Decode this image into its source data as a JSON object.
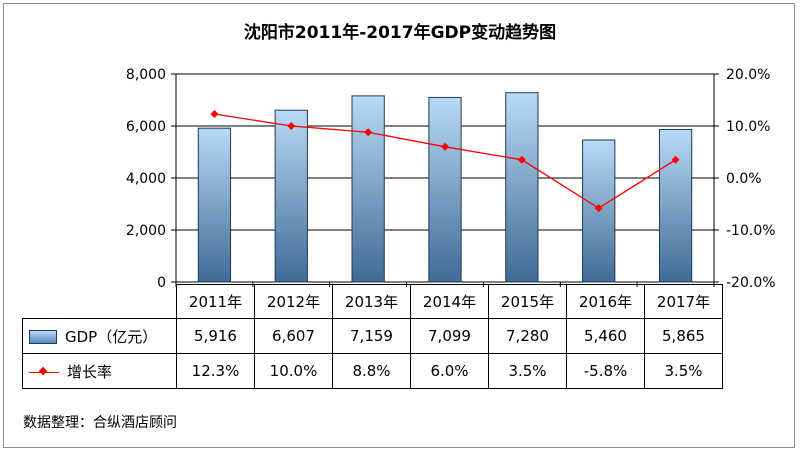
{
  "source_note": "数据整理：合纵酒店顾问",
  "legend": {
    "gdp": "GDP（亿元）",
    "growth": "增长率"
  },
  "chart_data": {
    "type": "bar",
    "title": "沈阳市2011年-2017年GDP变动趋势图",
    "categories": [
      "2011年",
      "2012年",
      "2013年",
      "2014年",
      "2015年",
      "2016年",
      "2017年"
    ],
    "series": [
      {
        "name": "GDP（亿元）",
        "type": "bar",
        "axis": "left",
        "values": [
          5916,
          6607,
          7159,
          7099,
          7280,
          5460,
          5865
        ],
        "labels": [
          "5,916",
          "6,607",
          "7,159",
          "7,099",
          "7,280",
          "5,460",
          "5,865"
        ]
      },
      {
        "name": "增长率",
        "type": "line",
        "axis": "right",
        "values": [
          12.3,
          10.0,
          8.8,
          6.0,
          3.5,
          -5.8,
          3.5
        ],
        "labels": [
          "12.3%",
          "10.0%",
          "8.8%",
          "6.0%",
          "3.5%",
          "-5.8%",
          "3.5%"
        ]
      }
    ],
    "y_left": {
      "range": [
        0,
        8000
      ],
      "ticks": [
        0,
        2000,
        4000,
        6000,
        8000
      ],
      "tick_labels": [
        "0",
        "2,000",
        "4,000",
        "6,000",
        "8,000"
      ]
    },
    "y_right": {
      "range": [
        -20,
        20
      ],
      "ticks": [
        -20,
        -10,
        0,
        10,
        20
      ],
      "tick_labels": [
        "-20.0%",
        "-10.0%",
        "0.0%",
        "10.0%",
        "20.0%"
      ]
    },
    "grid": true,
    "legend_position": "table-bottom",
    "colors": {
      "bar_top": "#b9daf7",
      "bar_bottom": "#3f6b94",
      "line": "#ff0000",
      "grid": "#000000"
    }
  }
}
